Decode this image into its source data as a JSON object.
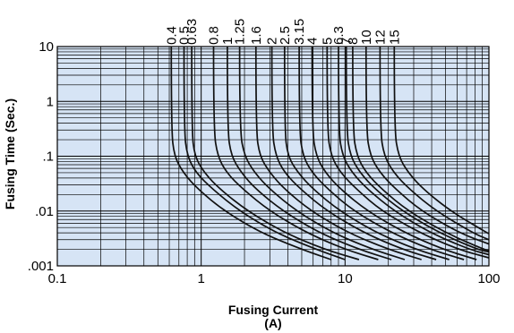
{
  "chart_data": {
    "type": "line",
    "xlabel": "Fusing Current",
    "xlabel_unit": "(A)",
    "ylabel": "Fusing Time (Sec.)",
    "xscale": "log",
    "yscale": "log",
    "xlim": [
      0.1,
      100
    ],
    "ylim": [
      0.001,
      10
    ],
    "x_tick_labels": [
      "0.1",
      "1",
      "10",
      "100"
    ],
    "y_tick_labels": [
      "10",
      "1",
      ".1",
      ".01",
      ".001"
    ],
    "grid": true,
    "background_color": "#d6e4f5",
    "curve_color": "#111111",
    "grid_color": "#000000",
    "series": [
      {
        "name": "0.4",
        "x": [
          0.62,
          0.62,
          0.65,
          0.75,
          0.95,
          1.45,
          2.6,
          5.0,
          8.0
        ],
        "y": [
          10,
          0.3,
          0.1,
          0.05,
          0.025,
          0.01,
          0.004,
          0.002,
          0.0013
        ]
      },
      {
        "name": "0.5",
        "x": [
          0.76,
          0.76,
          0.8,
          0.92,
          1.2,
          1.85,
          3.3,
          6.3,
          10.0
        ],
        "y": [
          10,
          0.3,
          0.1,
          0.05,
          0.025,
          0.01,
          0.004,
          0.002,
          0.0013
        ]
      },
      {
        "name": "0.63",
        "x": [
          0.86,
          0.86,
          0.9,
          1.05,
          1.35,
          2.1,
          3.8,
          7.2,
          12.5
        ],
        "y": [
          10,
          0.3,
          0.1,
          0.05,
          0.025,
          0.01,
          0.004,
          0.002,
          0.0013
        ]
      },
      {
        "name": "0.8",
        "x": [
          1.22,
          1.22,
          1.3,
          1.5,
          1.95,
          3.0,
          5.4,
          10.0,
          17.0
        ],
        "y": [
          10,
          0.3,
          0.1,
          0.05,
          0.025,
          0.01,
          0.004,
          0.002,
          0.0013
        ]
      },
      {
        "name": "1",
        "x": [
          1.52,
          1.52,
          1.62,
          1.9,
          2.4,
          3.7,
          6.6,
          12.5,
          21.0
        ],
        "y": [
          10,
          0.3,
          0.1,
          0.05,
          0.025,
          0.01,
          0.004,
          0.002,
          0.0013
        ]
      },
      {
        "name": "1.25",
        "x": [
          1.85,
          1.85,
          2.0,
          2.35,
          3.0,
          4.6,
          8.2,
          15.5,
          26.0
        ],
        "y": [
          10,
          0.3,
          0.1,
          0.05,
          0.025,
          0.01,
          0.004,
          0.002,
          0.0013
        ]
      },
      {
        "name": "1.6",
        "x": [
          2.4,
          2.4,
          2.55,
          3.0,
          3.8,
          5.8,
          10.5,
          20.0,
          34.0
        ],
        "y": [
          10,
          0.3,
          0.1,
          0.05,
          0.025,
          0.01,
          0.004,
          0.002,
          0.0013
        ]
      },
      {
        "name": "2",
        "x": [
          3.1,
          3.1,
          3.3,
          3.8,
          4.9,
          7.5,
          13.5,
          25.0,
          43.0
        ],
        "y": [
          10,
          0.3,
          0.1,
          0.05,
          0.025,
          0.01,
          0.004,
          0.002,
          0.0013
        ]
      },
      {
        "name": "2.5",
        "x": [
          3.8,
          3.8,
          4.0,
          4.7,
          6.0,
          9.2,
          16.5,
          31.0,
          53.0
        ],
        "y": [
          10,
          0.3,
          0.1,
          0.05,
          0.025,
          0.01,
          0.004,
          0.002,
          0.0013
        ]
      },
      {
        "name": "3.15",
        "x": [
          4.8,
          4.8,
          5.1,
          5.9,
          7.6,
          11.5,
          21.0,
          39.0,
          67.0
        ],
        "y": [
          10,
          0.3,
          0.1,
          0.05,
          0.025,
          0.01,
          0.004,
          0.002,
          0.0013
        ]
      },
      {
        "name": "4",
        "x": [
          5.9,
          5.9,
          6.3,
          7.3,
          9.3,
          14.3,
          26.0,
          48.0,
          82.0
        ],
        "y": [
          10,
          0.3,
          0.1,
          0.05,
          0.025,
          0.01,
          0.004,
          0.002,
          0.0013
        ]
      },
      {
        "name": "5",
        "x": [
          7.5,
          7.5,
          8.0,
          9.3,
          12.0,
          18.0,
          33.0,
          61.0,
          100.0
        ],
        "y": [
          10,
          0.3,
          0.1,
          0.05,
          0.025,
          0.01,
          0.004,
          0.002,
          0.0014
        ]
      },
      {
        "name": "6.3",
        "x": [
          9.0,
          9.0,
          9.6,
          11.2,
          14.3,
          22.0,
          39.0,
          73.0,
          100.0
        ],
        "y": [
          10,
          0.3,
          0.1,
          0.05,
          0.025,
          0.01,
          0.004,
          0.002,
          0.0016
        ]
      },
      {
        "name": "7",
        "x": [
          10.2,
          10.2,
          10.9,
          12.7,
          16.2,
          25.0,
          45.0,
          83.0,
          100.0
        ],
        "y": [
          10,
          0.3,
          0.1,
          0.05,
          0.025,
          0.01,
          0.004,
          0.002,
          0.0018
        ]
      },
      {
        "name": "8",
        "x": [
          11.3,
          11.3,
          12.1,
          14.0,
          18.0,
          27.5,
          50.0,
          92.0,
          100.0
        ],
        "y": [
          10,
          0.3,
          0.1,
          0.05,
          0.025,
          0.01,
          0.004,
          0.002,
          0.0019
        ]
      },
      {
        "name": "10",
        "x": [
          14.0,
          14.0,
          15.0,
          17.5,
          22.5,
          34.0,
          62.0,
          100.0
        ],
        "y": [
          10,
          0.3,
          0.1,
          0.05,
          0.025,
          0.01,
          0.004,
          0.0025
        ]
      },
      {
        "name": "12",
        "x": [
          17.5,
          17.5,
          18.7,
          21.8,
          28.0,
          43.0,
          77.0,
          100.0
        ],
        "y": [
          10,
          0.3,
          0.1,
          0.05,
          0.025,
          0.01,
          0.004,
          0.003
        ]
      },
      {
        "name": "15",
        "x": [
          22.0,
          22.0,
          23.5,
          27.5,
          35.0,
          54.0,
          97.0,
          100.0
        ],
        "y": [
          10,
          0.3,
          0.1,
          0.05,
          0.025,
          0.01,
          0.004,
          0.0039
        ]
      }
    ]
  }
}
